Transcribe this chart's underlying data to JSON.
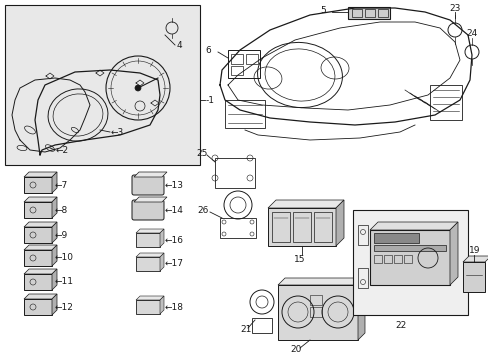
{
  "background_color": "#ffffff",
  "line_color": "#1a1a1a",
  "font_size": 6.5,
  "box1_bg": "#e8e8e8",
  "box2_bg": "#f0f0f0",
  "box22_bg": "#f0f0f0"
}
